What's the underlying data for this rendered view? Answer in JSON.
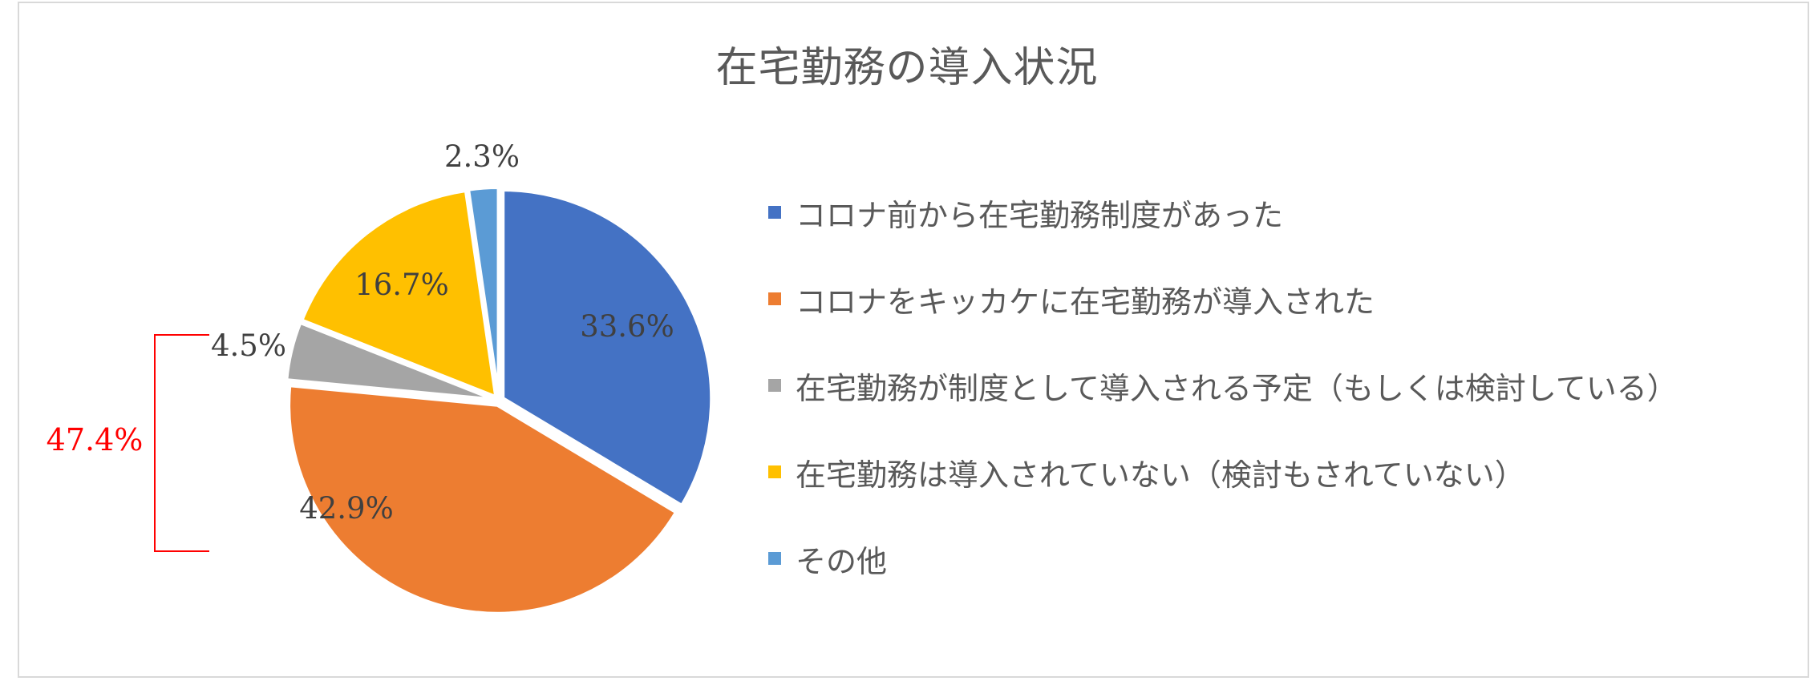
{
  "chart_data": {
    "type": "pie",
    "title": "在宅勤務の導入状況",
    "slices": [
      {
        "label": "コロナ前から在宅勤務制度があった",
        "value": 33.6,
        "value_label": "33.6%",
        "color": "#4472c4"
      },
      {
        "label": "コロナをキッカケに在宅勤務が導入された",
        "value": 42.9,
        "value_label": "42.9%",
        "color": "#ed7d31"
      },
      {
        "label": "在宅勤務が制度として導入される予定（もしくは検討している）",
        "value": 4.5,
        "value_label": "4.5%",
        "color": "#a5a5a5"
      },
      {
        "label": "在宅勤務は導入されていない（検討もされていない）",
        "value": 16.7,
        "value_label": "16.7%",
        "color": "#ffc000"
      },
      {
        "label": "その他",
        "value": 2.3,
        "value_label": "2.3%",
        "color": "#5b9bd5"
      }
    ],
    "legend_position": "right",
    "annotation": {
      "text": "47.4%",
      "color": "#ff0000",
      "spans": [
        "42.9%",
        "4.5%"
      ]
    }
  }
}
